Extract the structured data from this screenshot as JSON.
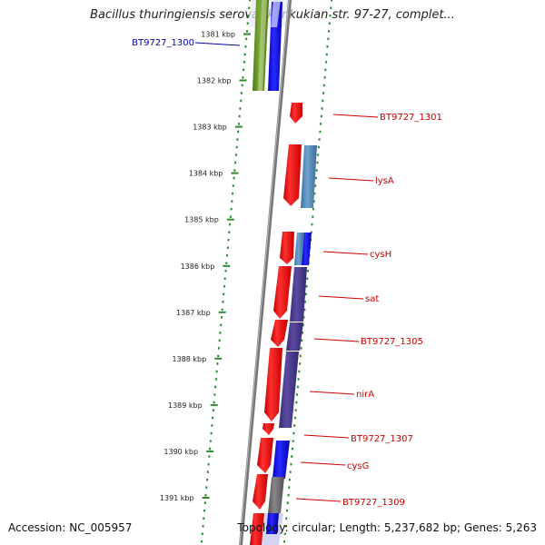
{
  "title": "Bacillus thuringiensis serovar konkukian str. 97-27, complet...",
  "accession": "Accession: NC_005957",
  "summary": "Topology: circular; Length: 5,237,682 bp; Genes: 5,263",
  "colors": {
    "ruler_dots": "#2e8b2e",
    "backbone": "#888888",
    "forward_gene": "#ff0000",
    "label_red": "#cc0000",
    "label_blue": "#0000aa"
  },
  "ruler": {
    "unit": "kbp",
    "ticks": [
      {
        "label": "1381 kbp",
        "kbp": 1381
      },
      {
        "label": "1382 kbp",
        "kbp": 1382
      },
      {
        "label": "1383 kbp",
        "kbp": 1383
      },
      {
        "label": "1384 kbp",
        "kbp": 1384
      },
      {
        "label": "1385 kbp",
        "kbp": 1385
      },
      {
        "label": "1386 kbp",
        "kbp": 1386
      },
      {
        "label": "1387 kbp",
        "kbp": 1387
      },
      {
        "label": "1388 kbp",
        "kbp": 1388
      },
      {
        "label": "1389 kbp",
        "kbp": 1389
      },
      {
        "label": "1390 kbp",
        "kbp": 1390
      },
      {
        "label": "1391 kbp",
        "kbp": 1391
      }
    ]
  },
  "gene_labels": [
    {
      "label": "BT9727_1300",
      "color": "#0000aa"
    },
    {
      "label": "BT9727_1301",
      "color": "#cc0000"
    },
    {
      "label": "lysA",
      "color": "#cc0000"
    },
    {
      "label": "cysH",
      "color": "#cc0000"
    },
    {
      "label": "sat",
      "color": "#cc0000"
    },
    {
      "label": "BT9727_1305",
      "color": "#cc0000"
    },
    {
      "label": "nirA",
      "color": "#cc0000"
    },
    {
      "label": "BT9727_1307",
      "color": "#cc0000"
    },
    {
      "label": "cysG",
      "color": "#cc0000"
    },
    {
      "label": "BT9727_1309",
      "color": "#cc0000"
    }
  ]
}
